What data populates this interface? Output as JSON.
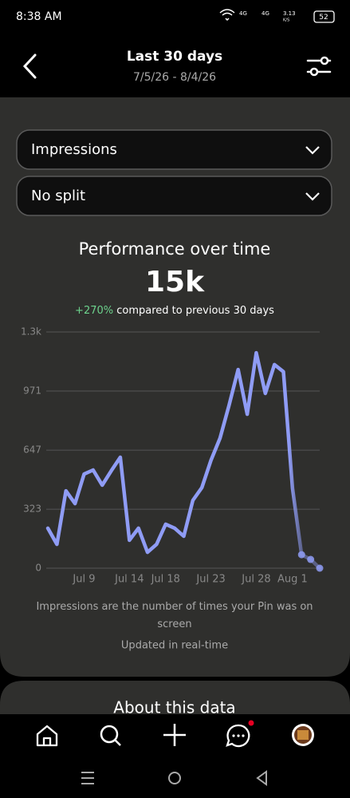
{
  "status_bar": {
    "time": "8:38 AM",
    "signal_1": "4G",
    "signal_2": "4G",
    "speed": "3.13",
    "speed_unit": "K/S",
    "battery": "52"
  },
  "header": {
    "title": "Last 30 days",
    "subtitle": "7/5/26 - 8/4/26"
  },
  "filters": [
    "Impressions",
    "No split"
  ],
  "chart_data": {
    "type": "line",
    "title": "Performance over time",
    "total": "15k",
    "change": "+270%",
    "change_text": "compared to previous 30 days",
    "categories": [
      null,
      null,
      null,
      null,
      "Jul 9",
      null,
      null,
      null,
      null,
      "Jul 14",
      null,
      null,
      null,
      "Jul 18",
      null,
      null,
      null,
      null,
      "Jul 23",
      null,
      null,
      null,
      null,
      "Jul 28",
      null,
      null,
      null,
      "Aug 1",
      null,
      null,
      null
    ],
    "values": [
      219,
      131,
      424,
      354,
      516,
      538,
      455,
      534,
      608,
      153,
      219,
      87,
      131,
      241,
      219,
      175,
      372,
      442,
      591,
      713,
      893,
      1089,
      844,
      1181,
      958,
      1116,
      1077,
      438,
      74,
      48,
      0
    ],
    "color": "#8f9cf5",
    "ylim": [
      0,
      1295
    ],
    "yticks": [
      0,
      323,
      647,
      971,
      {
        "value": 1295,
        "label": "1.3k"
      }
    ],
    "grid": true,
    "note": "Impressions are the number of times your Pin was on screen",
    "updated": "Updated in real-time"
  },
  "about": {
    "title": "About this data"
  }
}
